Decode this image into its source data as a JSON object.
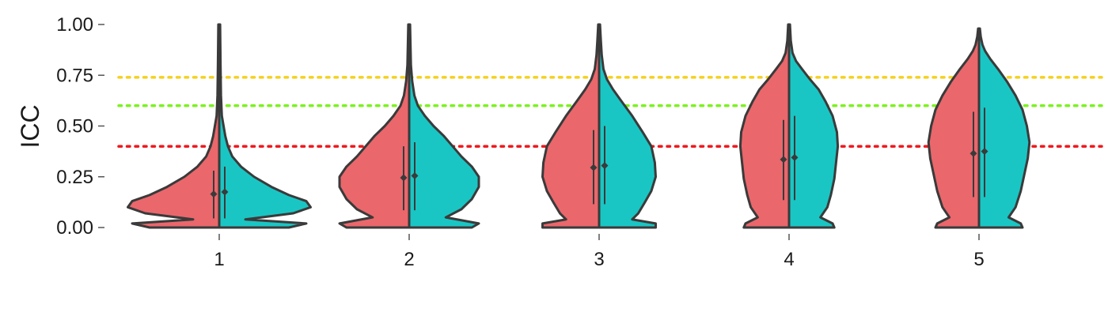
{
  "chart_data": {
    "type": "violin",
    "ylabel": "ICC",
    "xlabel": "",
    "ylim": [
      0,
      1
    ],
    "y_ticks": [
      "0.00",
      "0.25",
      "0.50",
      "0.75",
      "1.00"
    ],
    "categories": [
      "1",
      "2",
      "3",
      "4",
      "5"
    ],
    "grid": false,
    "split": true,
    "colors": {
      "left": "#EA676C",
      "right": "#19C6C4",
      "outline": "#3a3a3a"
    },
    "reference_lines": [
      {
        "y": 0.74,
        "color": "#F5D11F"
      },
      {
        "y": 0.6,
        "color": "#7CF21E"
      },
      {
        "y": 0.4,
        "color": "#F0191E"
      }
    ],
    "series": [
      {
        "side": "left",
        "medians": [
          0.165,
          0.245,
          0.295,
          0.335,
          0.365
        ],
        "whisker_low": [
          0.045,
          0.085,
          0.115,
          0.135,
          0.15
        ],
        "whisker_high": [
          0.28,
          0.4,
          0.48,
          0.53,
          0.57
        ]
      },
      {
        "side": "right",
        "medians": [
          0.175,
          0.255,
          0.305,
          0.345,
          0.375
        ],
        "whisker_low": [
          0.045,
          0.085,
          0.115,
          0.135,
          0.15
        ],
        "whisker_high": [
          0.3,
          0.42,
          0.5,
          0.55,
          0.59
        ]
      }
    ],
    "violins": [
      {
        "top": 1.0,
        "profile": [
          [
            0.0,
            0.8
          ],
          [
            0.02,
            1.0
          ],
          [
            0.04,
            0.3
          ],
          [
            0.07,
            0.85
          ],
          [
            0.1,
            1.05
          ],
          [
            0.13,
            1.0
          ],
          [
            0.16,
            0.8
          ],
          [
            0.2,
            0.6
          ],
          [
            0.25,
            0.4
          ],
          [
            0.3,
            0.25
          ],
          [
            0.35,
            0.15
          ],
          [
            0.4,
            0.1
          ],
          [
            0.45,
            0.07
          ],
          [
            0.5,
            0.05
          ],
          [
            0.55,
            0.03
          ],
          [
            0.65,
            0.02
          ],
          [
            0.8,
            0.015
          ],
          [
            1.0,
            0.01
          ]
        ]
      },
      {
        "top": 1.0,
        "profile": [
          [
            0.0,
            0.72
          ],
          [
            0.02,
            0.8
          ],
          [
            0.05,
            0.42
          ],
          [
            0.09,
            0.6
          ],
          [
            0.14,
            0.72
          ],
          [
            0.2,
            0.8
          ],
          [
            0.25,
            0.8
          ],
          [
            0.3,
            0.72
          ],
          [
            0.35,
            0.6
          ],
          [
            0.4,
            0.5
          ],
          [
            0.45,
            0.4
          ],
          [
            0.5,
            0.28
          ],
          [
            0.55,
            0.18
          ],
          [
            0.6,
            0.1
          ],
          [
            0.65,
            0.06
          ],
          [
            0.72,
            0.035
          ],
          [
            0.8,
            0.02
          ],
          [
            0.9,
            0.015
          ],
          [
            1.0,
            0.01
          ]
        ]
      },
      {
        "top": 1.0,
        "profile": [
          [
            0.0,
            0.65
          ],
          [
            0.02,
            0.65
          ],
          [
            0.04,
            0.38
          ],
          [
            0.07,
            0.45
          ],
          [
            0.12,
            0.52
          ],
          [
            0.18,
            0.6
          ],
          [
            0.25,
            0.65
          ],
          [
            0.32,
            0.64
          ],
          [
            0.4,
            0.6
          ],
          [
            0.47,
            0.5
          ],
          [
            0.55,
            0.38
          ],
          [
            0.62,
            0.26
          ],
          [
            0.68,
            0.16
          ],
          [
            0.73,
            0.09
          ],
          [
            0.78,
            0.05
          ],
          [
            0.85,
            0.03
          ],
          [
            0.92,
            0.02
          ],
          [
            1.0,
            0.01
          ]
        ]
      },
      {
        "top": 1.0,
        "profile": [
          [
            0.0,
            0.52
          ],
          [
            0.02,
            0.5
          ],
          [
            0.05,
            0.36
          ],
          [
            0.1,
            0.44
          ],
          [
            0.16,
            0.48
          ],
          [
            0.24,
            0.52
          ],
          [
            0.32,
            0.54
          ],
          [
            0.4,
            0.56
          ],
          [
            0.47,
            0.55
          ],
          [
            0.55,
            0.5
          ],
          [
            0.62,
            0.42
          ],
          [
            0.68,
            0.34
          ],
          [
            0.73,
            0.24
          ],
          [
            0.78,
            0.15
          ],
          [
            0.82,
            0.08
          ],
          [
            0.86,
            0.04
          ],
          [
            0.92,
            0.02
          ],
          [
            1.0,
            0.01
          ]
        ]
      },
      {
        "top": 0.98,
        "profile": [
          [
            0.0,
            0.5
          ],
          [
            0.02,
            0.48
          ],
          [
            0.05,
            0.34
          ],
          [
            0.1,
            0.42
          ],
          [
            0.18,
            0.48
          ],
          [
            0.26,
            0.52
          ],
          [
            0.34,
            0.56
          ],
          [
            0.42,
            0.58
          ],
          [
            0.5,
            0.55
          ],
          [
            0.58,
            0.5
          ],
          [
            0.65,
            0.42
          ],
          [
            0.72,
            0.32
          ],
          [
            0.78,
            0.22
          ],
          [
            0.83,
            0.13
          ],
          [
            0.87,
            0.07
          ],
          [
            0.9,
            0.04
          ],
          [
            0.94,
            0.02
          ],
          [
            0.98,
            0.01
          ]
        ]
      }
    ]
  }
}
